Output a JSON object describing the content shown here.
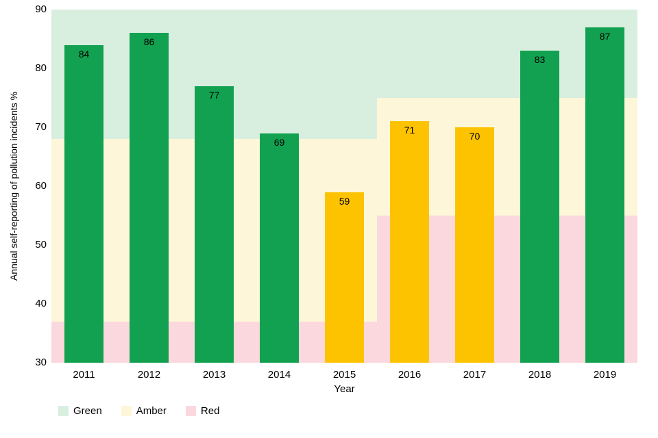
{
  "chart_data": {
    "type": "bar",
    "title": "",
    "xlabel": "Year",
    "ylabel": "Annual self-reporting of pollution incidents %",
    "ylim": [
      30,
      90
    ],
    "yticks": [
      30,
      40,
      50,
      60,
      70,
      80,
      90
    ],
    "grid": false,
    "legend_position": "bottom",
    "categories": [
      "2011",
      "2012",
      "2013",
      "2014",
      "2015",
      "2016",
      "2017",
      "2018",
      "2019"
    ],
    "values": [
      84,
      86,
      77,
      69,
      59,
      71,
      70,
      83,
      87
    ],
    "bar_colors": [
      "green",
      "green",
      "green",
      "green",
      "amber",
      "amber",
      "amber",
      "green",
      "green"
    ],
    "threshold_segments": [
      {
        "x_start_frac": 0.0,
        "x_end_frac": 0.5556,
        "red_top": 37,
        "green_bottom": 68
      },
      {
        "x_start_frac": 0.5556,
        "x_end_frac": 1.0,
        "red_top": 55,
        "green_bottom": 75
      }
    ],
    "legend": [
      {
        "label": "Green",
        "color": "#d8efe0"
      },
      {
        "label": "Amber",
        "color": "#fdf6d8"
      },
      {
        "label": "Red",
        "color": "#fbd8dd"
      }
    ],
    "colors": {
      "green_band": "#d8efe0",
      "amber_band": "#fdf6d8",
      "red_band": "#fbd8dd",
      "green_bar": "#12a150",
      "amber_bar": "#fdc300"
    }
  }
}
